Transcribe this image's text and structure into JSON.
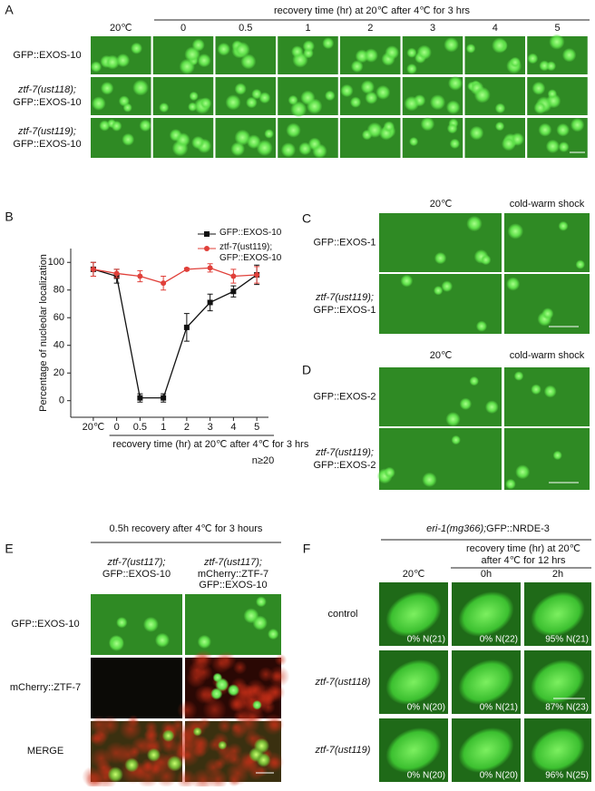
{
  "panel_a": {
    "label": "A",
    "header": "recovery time (hr) at 20℃ after 4℃ for 3 hrs",
    "columns": [
      "20℃",
      "0",
      "0.5",
      "1",
      "2",
      "3",
      "4",
      "5"
    ],
    "rows": [
      {
        "reporter": "GFP::EXOS-10"
      },
      {
        "genotype": "ztf-7(ust118);",
        "reporter": "GFP::EXOS-10"
      },
      {
        "genotype": "ztf-7(ust119);",
        "reporter": "GFP::EXOS-10"
      }
    ]
  },
  "chart_data": {
    "type": "line",
    "label": "B",
    "ylabel": "Percentage of nucleolar localization",
    "xlabel": "recovery time (hr) at 20℃ after 4℃ for 3 hrs",
    "annotation": "n≥20",
    "categories": [
      "20℃",
      "0",
      "0.5",
      "1",
      "2",
      "3",
      "4",
      "5"
    ],
    "series": [
      {
        "name": "GFP::EXOS-10",
        "color": "#111111",
        "marker": "square",
        "values": [
          95,
          90,
          2,
          2,
          53,
          71,
          79,
          91
        ],
        "errors": [
          5,
          5,
          3,
          3,
          10,
          6,
          4,
          7
        ]
      },
      {
        "name": "ztf-7(ust119); GFP::EXOS-10",
        "color": "#e0403a",
        "marker": "circle",
        "values": [
          95,
          92,
          90,
          85,
          95,
          96,
          90,
          91
        ],
        "errors": [
          5,
          3,
          4,
          5,
          1,
          3,
          5,
          6
        ]
      }
    ],
    "ylim": [
      -12,
      110
    ],
    "yticks": [
      0,
      20,
      40,
      60,
      80,
      100
    ],
    "legend": "upper right"
  },
  "panel_c": {
    "label": "C",
    "columns": [
      "20℃",
      "cold-warm shock"
    ],
    "rows": [
      {
        "reporter": "GFP::EXOS-1"
      },
      {
        "genotype": "ztf-7(ust119);",
        "reporter": "GFP::EXOS-1"
      }
    ]
  },
  "panel_d": {
    "label": "D",
    "columns": [
      "20℃",
      "cold-warm shock"
    ],
    "rows": [
      {
        "reporter": "GFP::EXOS-2"
      },
      {
        "genotype": "ztf-7(ust119);",
        "reporter": "GFP::EXOS-2"
      }
    ]
  },
  "panel_e": {
    "label": "E",
    "header": "0.5h recovery after 4℃ for 3 hours",
    "columns": [
      {
        "genotype": "ztf-7(ust117);",
        "lines": [
          "GFP::EXOS-10"
        ]
      },
      {
        "genotype": "ztf-7(ust117);",
        "lines": [
          "mCherry::ZTF-7",
          "GFP::EXOS-10"
        ]
      }
    ],
    "rows": [
      "GFP::EXOS-10",
      "mCherry::ZTF-7",
      "MERGE"
    ]
  },
  "panel_f": {
    "label": "F",
    "header": {
      "genotype": "eri-1(mg366);",
      "reporter": "GFP::NRDE-3"
    },
    "subheader": [
      "recovery time (hr) at 20℃",
      "after 4℃ for 12 hrs"
    ],
    "columns": [
      "20℃",
      "0h",
      "2h"
    ],
    "rows": [
      {
        "label": "control",
        "cells": [
          "0% N(21)",
          "0% N(22)",
          "95% N(21)"
        ]
      },
      {
        "label": "ztf-7(ust118)",
        "cells": [
          "0% N(20)",
          "0% N(21)",
          "87% N(23)"
        ]
      },
      {
        "label": "ztf-7(ust119)",
        "cells": [
          "0% N(20)",
          "0% N(20)",
          "96% N(25)"
        ]
      }
    ]
  }
}
